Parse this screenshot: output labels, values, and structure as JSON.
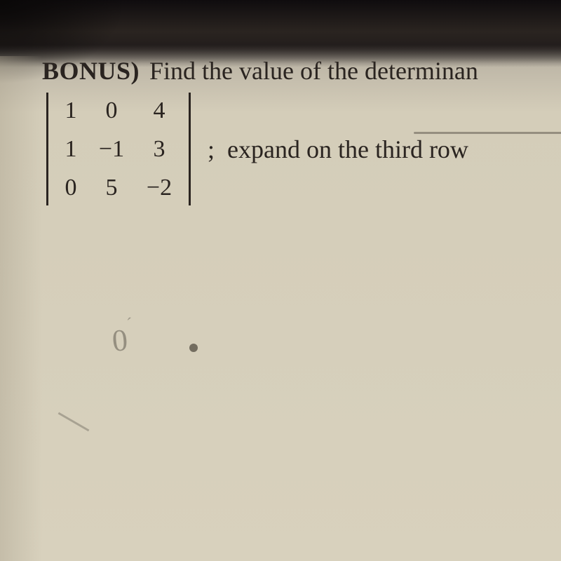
{
  "problem": {
    "label": "BONUS)",
    "prompt": "Find the value of the determinan",
    "instruction_prefix": ";",
    "instruction": "expand on the third row"
  },
  "matrix": {
    "rows": [
      [
        "1",
        "0",
        "4"
      ],
      [
        "1",
        "−1",
        "3"
      ],
      [
        "0",
        "5",
        "−2"
      ]
    ]
  },
  "handwriting": {
    "mark": "0",
    "tilde": "´"
  },
  "colors": {
    "text": "#2a2420",
    "pencil": "#7a7468",
    "paper": "#d4cdb9"
  },
  "typography": {
    "font_family": "Times New Roman",
    "label_size_pt": 36,
    "body_size_pt": 36,
    "matrix_size_pt": 34
  }
}
